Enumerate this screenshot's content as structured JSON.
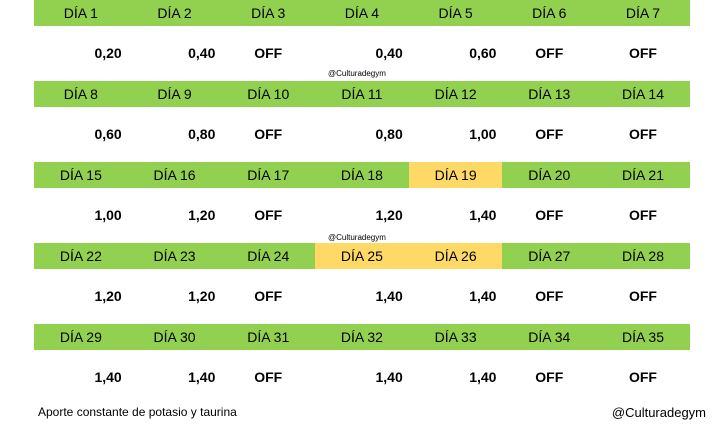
{
  "weeks": [
    {
      "days": [
        "DÍA 1",
        "DÍA 2",
        "DÍA 3",
        "DÍA 4",
        "DÍA 5",
        "DÍA 6",
        "DÍA 7"
      ],
      "values": [
        "0,20",
        "0,40",
        "OFF",
        "0,40",
        "0,60",
        "OFF",
        "OFF"
      ],
      "highlight": []
    },
    {
      "days": [
        "DÍA 8",
        "DÍA 9",
        "DÍA 10",
        "DÍA 11",
        "DÍA 12",
        "DÍA 13",
        "DÍA 14"
      ],
      "values": [
        "0,60",
        "0,80",
        "OFF",
        "0,80",
        "1,00",
        "OFF",
        "OFF"
      ],
      "highlight": []
    },
    {
      "days": [
        "DÍA 15",
        "DÍA 16",
        "DÍA 17",
        "DÍA 18",
        "DÍA 19",
        "DÍA 20",
        "DÍA 21"
      ],
      "values": [
        "1,00",
        "1,20",
        "OFF",
        "1,20",
        "1,40",
        "OFF",
        "OFF"
      ],
      "highlight": [
        4
      ]
    },
    {
      "days": [
        "DÍA 22",
        "DÍA 23",
        "DÍA 24",
        "DÍA 25",
        "DÍA 26",
        "DÍA 27",
        "DÍA 28"
      ],
      "values": [
        "1,20",
        "1,20",
        "OFF",
        "1,40",
        "1,40",
        "OFF",
        "OFF"
      ],
      "highlight": [
        3,
        4
      ]
    },
    {
      "days": [
        "DÍA 29",
        "DÍA 30",
        "DÍA 31",
        "DÍA 32",
        "DÍA 33",
        "DÍA 34",
        "DÍA 35"
      ],
      "values": [
        "1,40",
        "1,40",
        "OFF",
        "1,40",
        "1,40",
        "OFF",
        "OFF"
      ],
      "highlight": []
    }
  ],
  "watermark_text": "@Culturadegym",
  "footer": {
    "note": "Aporte constante de potasio y taurina",
    "credit": "@Culturadegym"
  },
  "colors": {
    "header_green": "#92d050",
    "highlight_yellow": "#ffd966"
  }
}
